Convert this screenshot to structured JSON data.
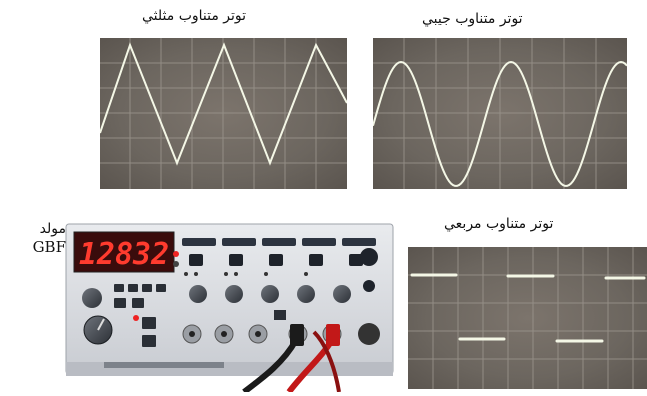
{
  "captions": {
    "triangle": "توتر متناوب مثلثي",
    "sine": "توتر متناوب جيبي",
    "square": "توتر متناوب مربعي"
  },
  "generator": {
    "label_ar": "مولد",
    "label_code": "GBF",
    "display_value": "12832"
  },
  "colors": {
    "scope_bg": "#6f6a66",
    "grid": "#9a948c",
    "trace": "#f4f7e6",
    "display_bg": "#3a0c0c",
    "display_digits": "#ff3b2e"
  },
  "waveforms": {
    "triangle": "triangle",
    "sine": "sine",
    "square": "square"
  }
}
